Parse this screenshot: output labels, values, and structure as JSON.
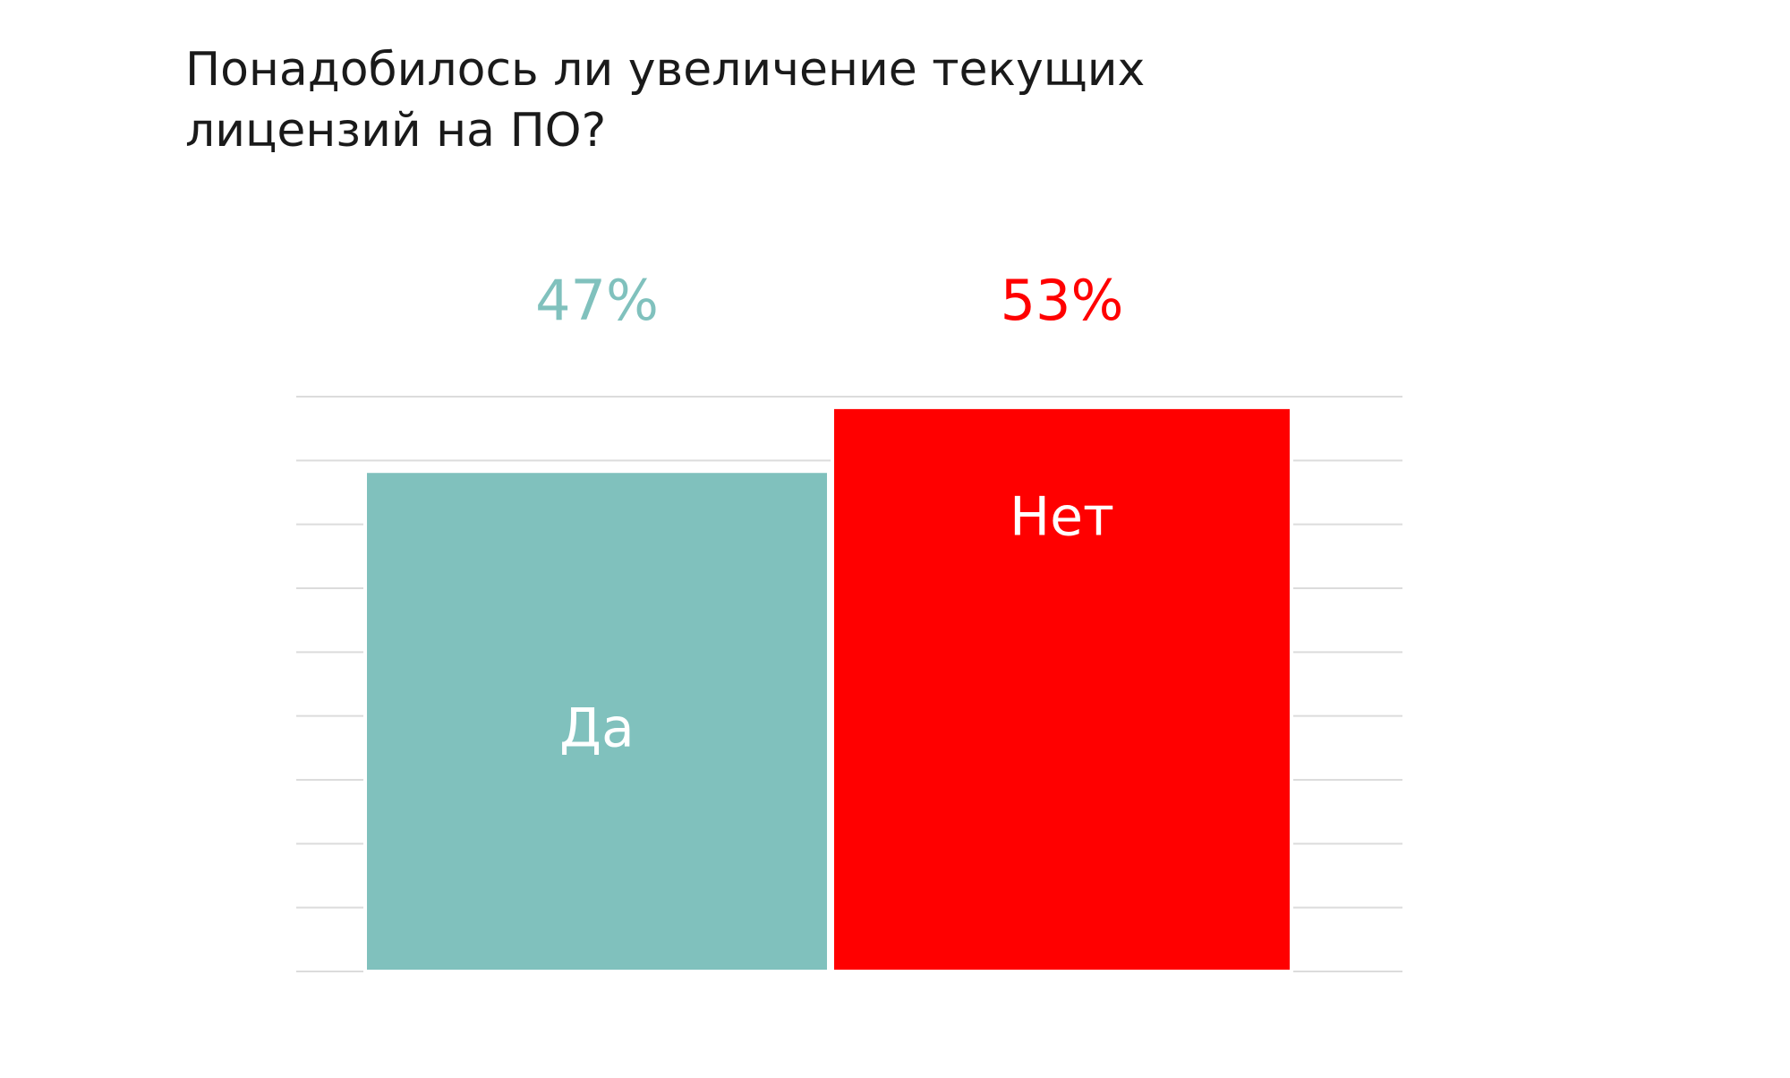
{
  "chart_data": {
    "type": "bar",
    "title": "Понадобилось ли увеличение текущих лицензий на ПО?",
    "categories": [
      "Да",
      "Нет"
    ],
    "values": [
      47,
      53
    ],
    "value_labels": [
      "47%",
      "53%"
    ],
    "colors": [
      "#80c1bd",
      "#ff0000"
    ],
    "ylim": [
      0,
      54
    ],
    "yticks": [
      0,
      6,
      12,
      18,
      24,
      30,
      36,
      42,
      48,
      54
    ],
    "grid": true
  }
}
